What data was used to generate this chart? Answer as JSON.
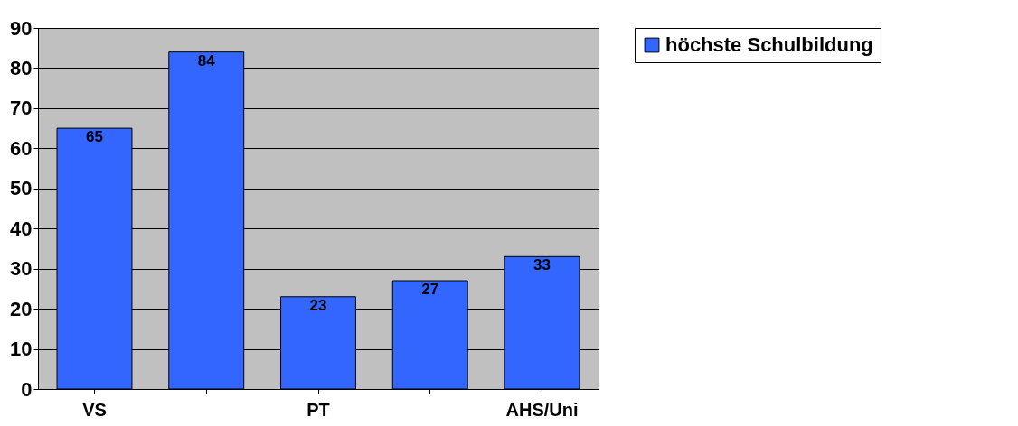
{
  "chart_data": {
    "type": "bar",
    "categories": [
      "VS",
      null,
      "PT",
      null,
      "AHS/Uni"
    ],
    "series": [
      {
        "name": "höchste Schulbildung",
        "color": "#3366ff",
        "values": [
          65,
          84,
          23,
          27,
          33
        ]
      }
    ],
    "ylim": [
      0,
      90
    ],
    "yticks": [
      0,
      10,
      20,
      30,
      40,
      50,
      60,
      70,
      80,
      90
    ],
    "grid": "y",
    "legend": "right",
    "data_labels": true
  }
}
